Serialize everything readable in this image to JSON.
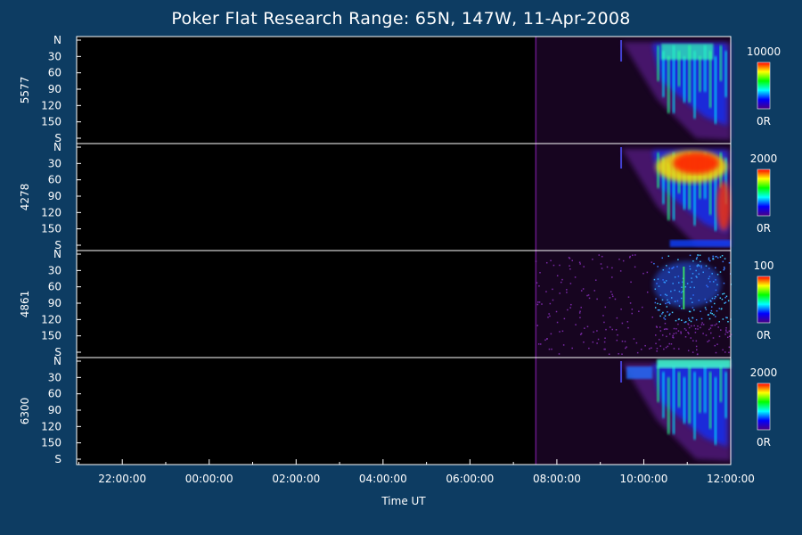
{
  "colors": {
    "background": "#0d3c62",
    "panel": "#000000",
    "axis": "#ffffff"
  },
  "chart_data": {
    "type": "heatmap",
    "title": "Poker Flat Research Range: 65N, 147W, 11-Apr-2008",
    "xlabel": "Time UT",
    "x_tick_labels": [
      "22:00:00",
      "00:00:00",
      "02:00:00",
      "04:00:00",
      "06:00:00",
      "08:00:00",
      "10:00:00",
      "12:00:00"
    ],
    "xlim_hours": [
      -3.05,
      12.0
    ],
    "y_tick_labels": [
      "N",
      "30",
      "60",
      "90",
      "120",
      "150",
      "S"
    ],
    "ylim_degrees": [
      0,
      180
    ],
    "colorscale": [
      "#4b0082",
      "#0000ff",
      "#00ffff",
      "#00ff00",
      "#ffff00",
      "#ff0000"
    ],
    "panels": [
      {
        "name": "5577",
        "max_label": "10000",
        "min_label": "0R",
        "activity": {
          "faint_start_hour": 7.5,
          "bright_start_hour": 9.5,
          "intensity": "high"
        }
      },
      {
        "name": "4278",
        "max_label": "2000",
        "min_label": "0R",
        "activity": {
          "faint_start_hour": 7.5,
          "bright_start_hour": 9.5,
          "intensity": "very high"
        }
      },
      {
        "name": "4861",
        "max_label": "100",
        "min_label": "0R",
        "activity": {
          "faint_start_hour": 7.5,
          "bright_start_hour": 10.2,
          "intensity": "noisy"
        }
      },
      {
        "name": "6300",
        "max_label": "2000",
        "min_label": "0R",
        "activity": {
          "faint_start_hour": 7.5,
          "bright_start_hour": 9.5,
          "intensity": "high"
        }
      }
    ]
  }
}
